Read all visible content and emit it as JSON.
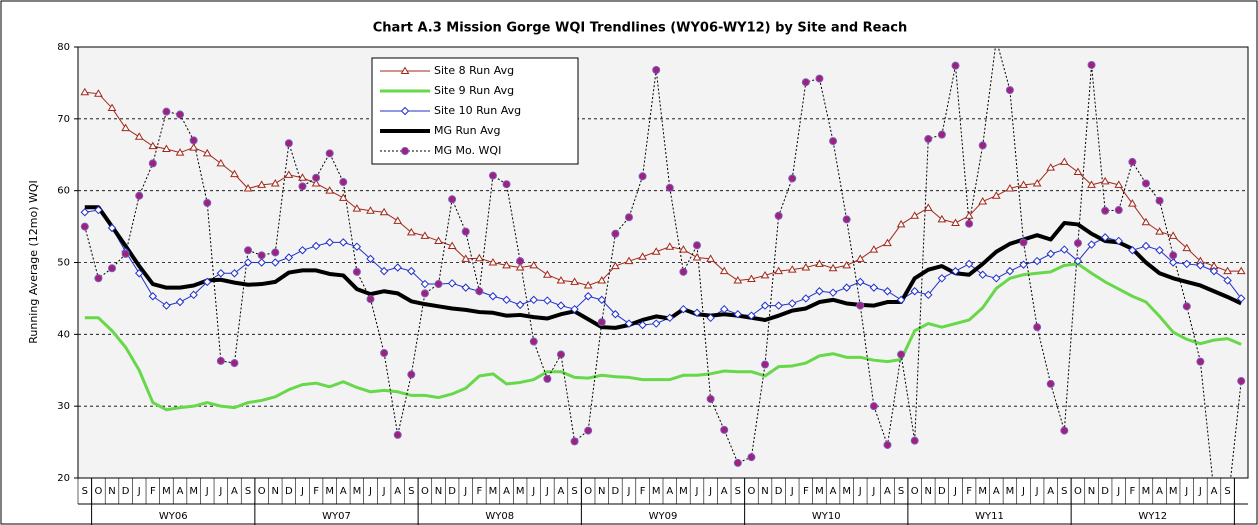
{
  "chart_data": {
    "type": "line",
    "title": "Chart A.3 Mission Gorge WQI Trendlines (WY06-WY12) by Site and Reach",
    "y_label": "Running Average (12mo) WQI",
    "ylim": [
      20,
      80
    ],
    "yticks": [
      20,
      30,
      40,
      50,
      60,
      70,
      80
    ],
    "grid": true,
    "categories": [
      "S",
      "O",
      "N",
      "D",
      "J",
      "F",
      "M",
      "A",
      "M",
      "J",
      "J",
      "A",
      "S",
      "O",
      "N",
      "D",
      "J",
      "F",
      "M",
      "A",
      "M",
      "J",
      "J",
      "A",
      "S",
      "O",
      "N",
      "D",
      "J",
      "F",
      "M",
      "A",
      "M",
      "J",
      "J",
      "A",
      "S",
      "O",
      "N",
      "D",
      "J",
      "F",
      "M",
      "A",
      "M",
      "J",
      "J",
      "A",
      "S",
      "O",
      "N",
      "D",
      "J",
      "F",
      "M",
      "A",
      "M",
      "J",
      "J",
      "A",
      "S",
      "O",
      "N",
      "D",
      "J",
      "F",
      "M",
      "A",
      "M",
      "J",
      "J",
      "A",
      "S",
      "O",
      "N",
      "D",
      "J",
      "F",
      "M",
      "A",
      "M",
      "J",
      "J",
      "A",
      "S",
      null
    ],
    "x_groups": [
      "WY06",
      "WY07",
      "WY08",
      "WY09",
      "WY10",
      "WY11",
      "WY12"
    ],
    "series": [
      {
        "name": "Site 8 Run Avg",
        "color": "#a0281a",
        "marker": "triangle",
        "width": 1,
        "dash": "solid",
        "values": [
          73.7,
          73.5,
          71.5,
          68.7,
          67.5,
          66.2,
          65.8,
          65.3,
          66,
          65.2,
          63.8,
          62.3,
          60.3,
          60.8,
          61,
          62.2,
          61.8,
          61,
          60,
          59,
          57.5,
          57.2,
          57,
          55.8,
          54.2,
          53.7,
          53,
          52.3,
          50.5,
          50.6,
          50,
          49.6,
          49.3,
          49.6,
          48.3,
          47.5,
          47.3,
          46.8,
          47.5,
          49.5,
          50.2,
          50.8,
          51.5,
          52.2,
          51.8,
          50.7,
          50.5,
          48.8,
          47.5,
          47.7,
          48.2,
          48.8,
          49,
          49.3,
          49.8,
          49.2,
          49.6,
          50.5,
          51.8,
          52.7,
          55.3,
          56.5,
          57.6,
          56,
          55.5,
          56.5,
          58.5,
          59.3,
          60.3,
          60.8,
          61,
          63.2,
          64,
          62.6,
          60.8,
          61.3,
          60.8,
          58.2,
          55.6,
          54.3,
          53.7,
          52,
          50.2,
          49.5,
          48.8,
          48.8
        ]
      },
      {
        "name": "Site 9 Run Avg",
        "color": "#66d84a",
        "marker": "none",
        "width": 3,
        "dash": "solid",
        "values": [
          42.3,
          42.3,
          40.5,
          38.2,
          35,
          30.5,
          29.5,
          29.8,
          30,
          30.5,
          30,
          29.8,
          30.5,
          30.8,
          31.3,
          32.3,
          33,
          33.2,
          32.7,
          33.4,
          32.6,
          32,
          32.2,
          32,
          31.5,
          31.5,
          31.2,
          31.7,
          32.5,
          34.2,
          34.5,
          33.1,
          33.3,
          33.7,
          34.8,
          34.8,
          34,
          33.9,
          34.3,
          34.1,
          34,
          33.7,
          33.7,
          33.7,
          34.3,
          34.3,
          34.5,
          34.9,
          34.8,
          34.8,
          34.2,
          35.5,
          35.6,
          36,
          37,
          37.3,
          36.8,
          36.8,
          36.4,
          36.2,
          36.5,
          40.5,
          41.5,
          41,
          41.5,
          42,
          43.7,
          46.4,
          47.8,
          48.3,
          48.5,
          48.7,
          49.6,
          49.8,
          48.5,
          47.3,
          46.3,
          45.3,
          44.5,
          42.5,
          40.3,
          39.3,
          38.7,
          39.2,
          39.4,
          38.6
        ]
      },
      {
        "name": "Site 10 Run Avg",
        "color": "#2030cc",
        "marker": "diamond",
        "width": 1,
        "dash": "solid",
        "values": [
          57,
          57.3,
          54.8,
          51.5,
          48.5,
          45.3,
          44,
          44.5,
          45.5,
          47.3,
          48.5,
          48.5,
          50,
          50,
          50,
          50.7,
          51.7,
          52.3,
          52.8,
          52.8,
          52.2,
          50.5,
          48.8,
          49.3,
          48.8,
          47,
          47,
          47.1,
          46.5,
          46,
          45.3,
          44.8,
          44.1,
          44.8,
          44.7,
          44,
          43.5,
          45.3,
          44.8,
          42.8,
          41.5,
          41.3,
          41.5,
          42.3,
          43.5,
          43,
          42.3,
          43.5,
          42.8,
          42.6,
          44,
          44,
          44.3,
          45,
          46,
          45.8,
          46.5,
          47.3,
          46.5,
          46,
          44.8,
          46,
          45.5,
          47.8,
          48.8,
          49.8,
          48.3,
          47.8,
          48.8,
          49.7,
          50.2,
          51.2,
          51.8,
          50.2,
          52.5,
          53.5,
          53,
          51.7,
          52.3,
          51.7,
          50,
          49.8,
          49.6,
          48.8,
          47.5,
          45
        ]
      },
      {
        "name": "MG Run Avg",
        "color": "#000000",
        "marker": "none",
        "width": 4,
        "dash": "solid",
        "values": [
          57.7,
          57.7,
          55,
          52.3,
          49.5,
          47,
          46.5,
          46.5,
          46.8,
          47.5,
          47.6,
          47.2,
          46.9,
          47,
          47.3,
          48.6,
          48.9,
          48.9,
          48.4,
          48.2,
          46.3,
          45.6,
          46,
          45.7,
          44.6,
          44.2,
          43.9,
          43.6,
          43.4,
          43.1,
          43,
          42.6,
          42.7,
          42.4,
          42.2,
          42.8,
          43.2,
          42.1,
          41,
          40.9,
          41.3,
          42,
          42.5,
          42.2,
          43.5,
          42.8,
          42.6,
          42.8,
          42.6,
          42.3,
          42,
          42.6,
          43.3,
          43.6,
          44.5,
          44.8,
          44.3,
          44.1,
          44,
          44.5,
          44.5,
          47.8,
          49,
          49.5,
          48.5,
          48.3,
          49.8,
          51.5,
          52.6,
          53.2,
          53.8,
          53.2,
          55.5,
          55.3,
          54,
          53,
          52.8,
          51.9,
          50,
          48.5,
          47.8,
          47.3,
          46.8,
          46,
          45.2,
          44.3
        ]
      },
      {
        "name": "MG Mo. WQI",
        "color": "#a0207a",
        "marker": "circle",
        "width": 1,
        "dash": "dotted",
        "values": [
          55,
          47.8,
          49.2,
          51.2,
          59.3,
          63.8,
          71,
          70.6,
          67,
          58.3,
          36.3,
          36,
          51.7,
          51,
          51.4,
          66.6,
          60.6,
          61.8,
          65.2,
          61.2,
          48.7,
          44.9,
          37.4,
          26,
          34.4,
          45.7,
          47,
          58.8,
          54.3,
          46,
          62.1,
          60.9,
          50.2,
          39,
          33.8,
          37.2,
          25.1,
          26.6,
          41.7,
          54,
          56.3,
          62,
          76.8,
          60.4,
          48.7,
          52.4,
          31,
          26.7,
          22.1,
          22.9,
          35.8,
          56.5,
          61.7,
          75.1,
          75.6,
          66.9,
          56,
          44,
          30,
          24.6,
          37.2,
          25.2,
          67.2,
          67.8,
          77.4,
          55.4,
          66.3,
          81,
          74,
          52.8,
          41,
          33.1,
          26.6,
          52.7,
          77.5,
          57.2,
          57.3,
          64,
          61,
          58.6,
          51,
          43.9,
          36.2,
          18,
          16,
          33.5
        ]
      }
    ]
  }
}
